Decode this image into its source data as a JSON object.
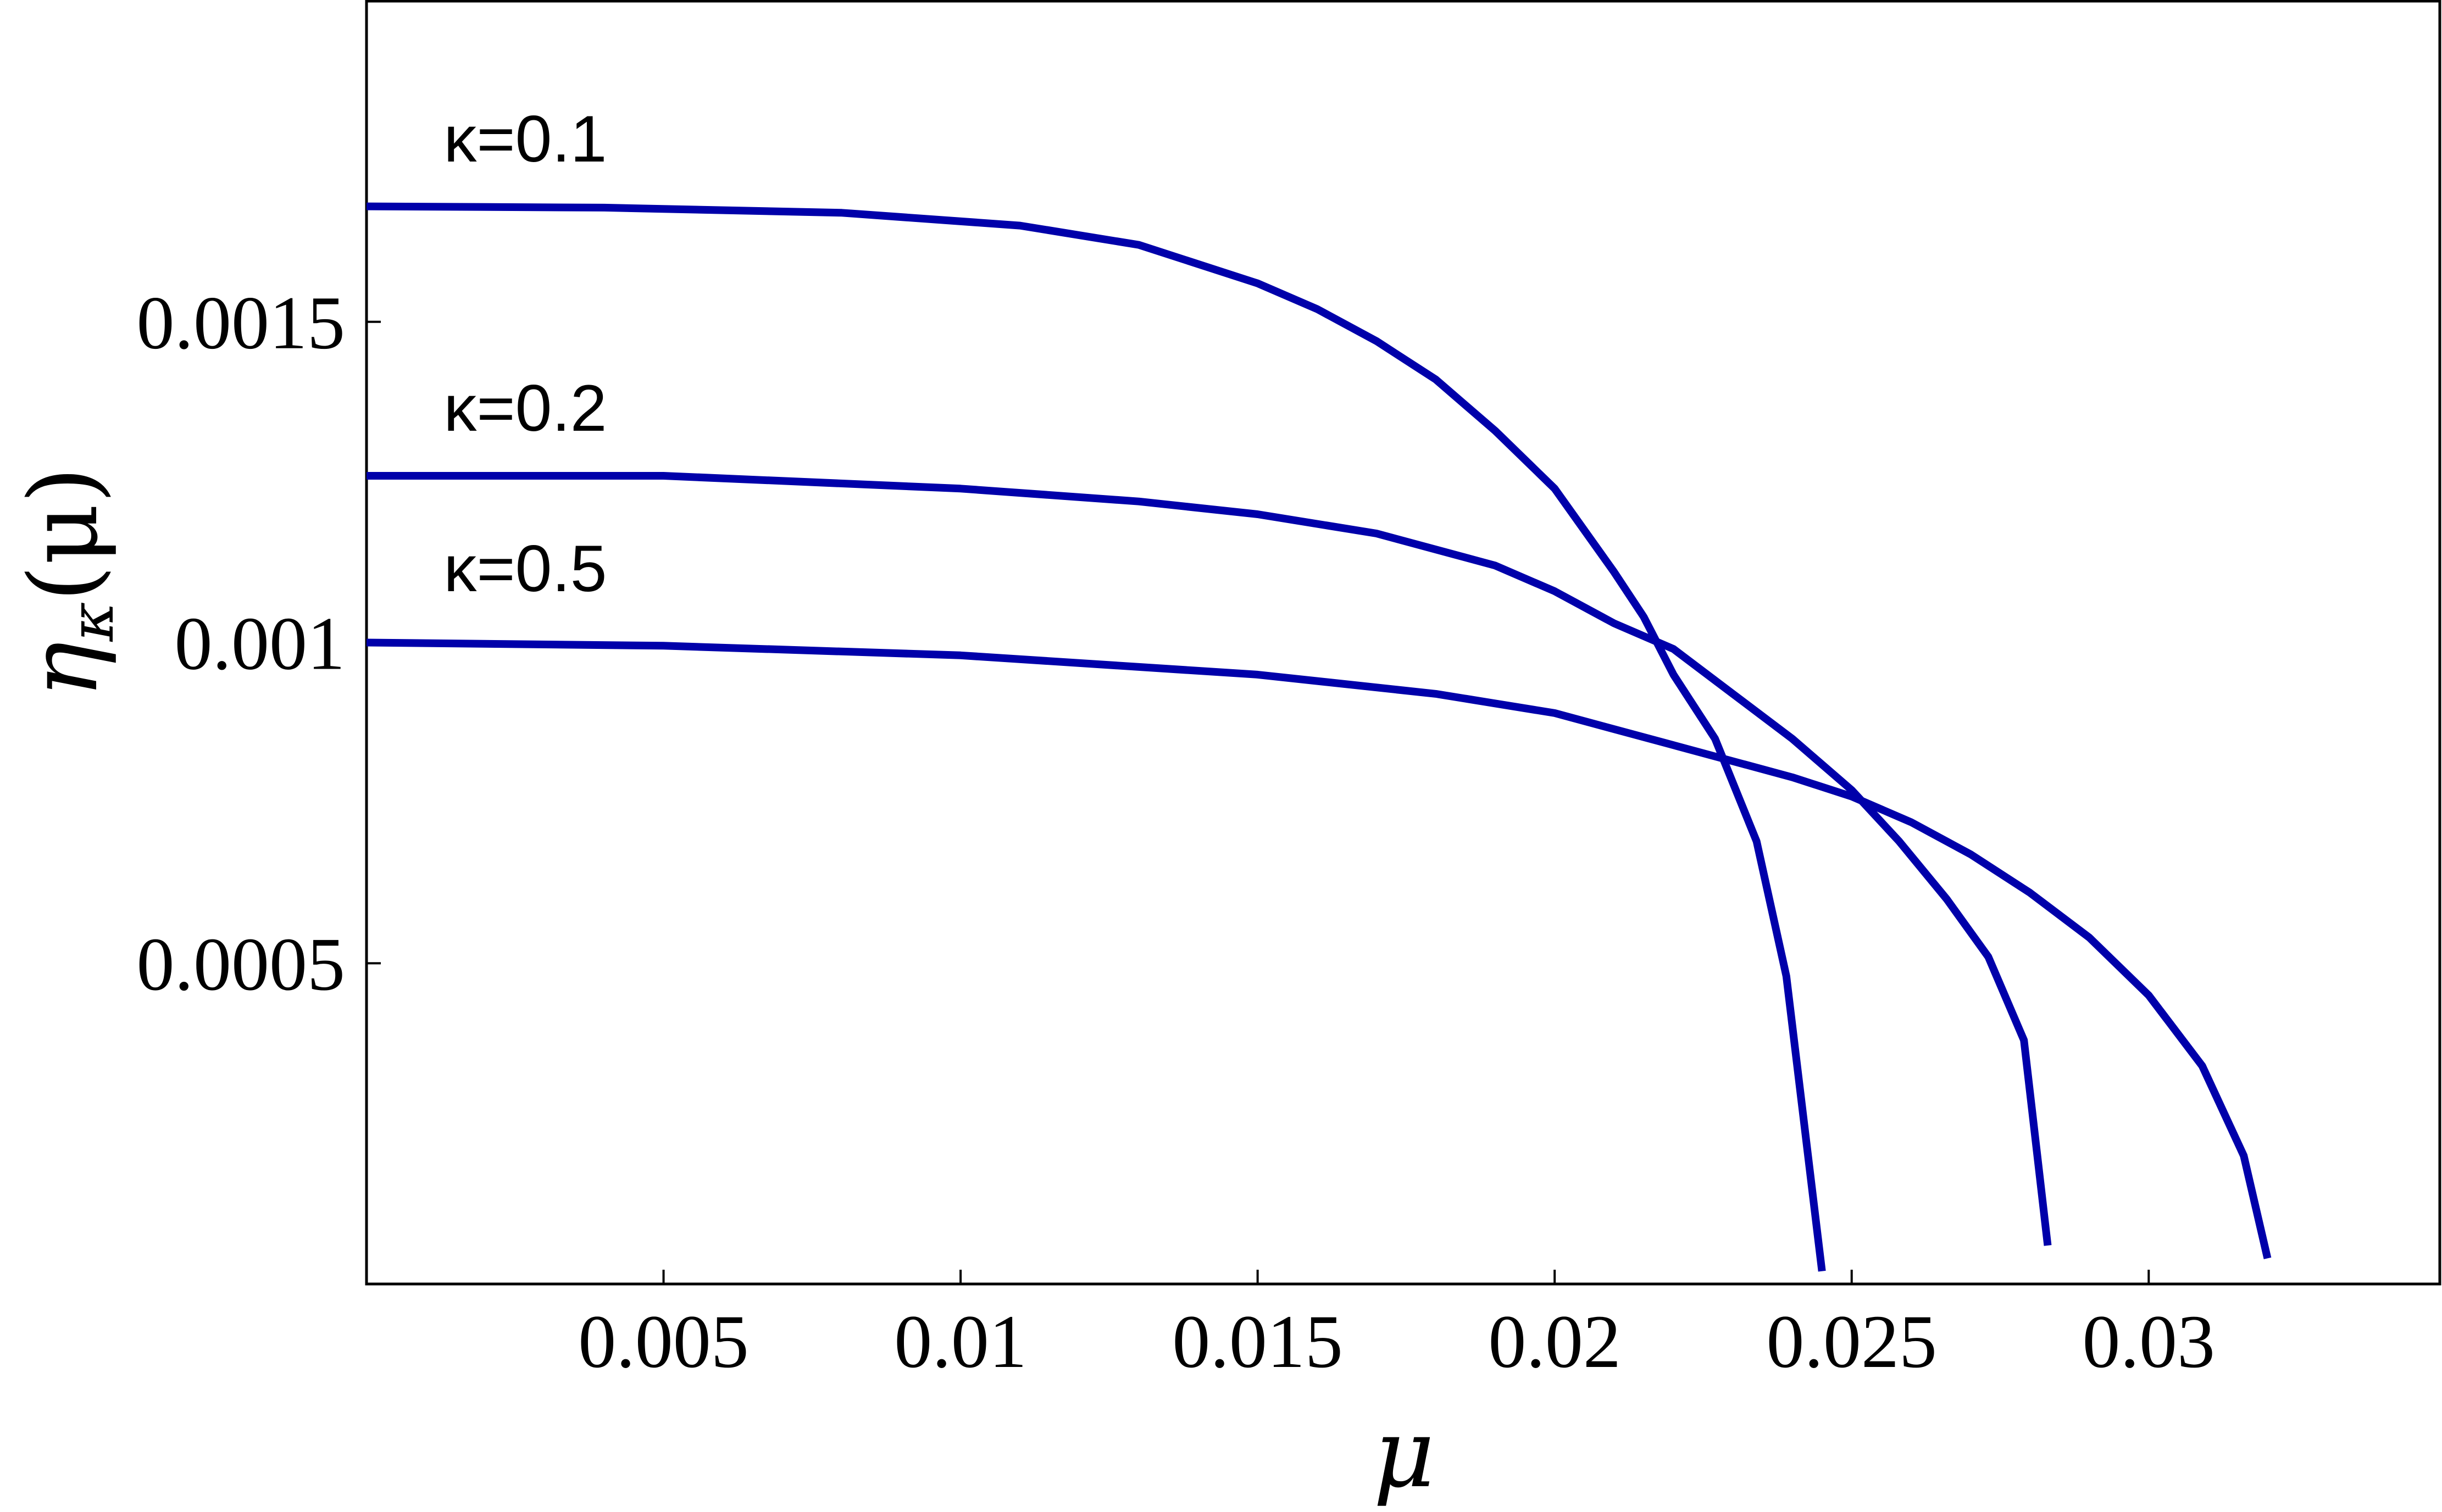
{
  "chart_data": {
    "type": "line",
    "title": "",
    "xlabel": "μ",
    "ylabel": "ηκ(μ)",
    "ylabel_main": "η",
    "ylabel_sub": "κ",
    "ylabel_arg": "(μ)",
    "xlim": [
      0,
      0.0349
    ],
    "ylim": [
      0,
      0.002
    ],
    "x_ticks": [
      0.005,
      0.01,
      0.015,
      0.02,
      0.025,
      0.03
    ],
    "x_tick_labels": [
      "0.005",
      "0.01",
      "0.015",
      "0.02",
      "0.025",
      "0.03"
    ],
    "y_ticks": [
      0.0005,
      0.001,
      0.0015
    ],
    "y_tick_labels": [
      "0.0005",
      "0.001",
      "0.0015"
    ],
    "grid": false,
    "line_color": "#0000aa",
    "series": [
      {
        "name": "κ=0.1",
        "label_x": 0.0013,
        "label_y": 0.00175,
        "x": [
          0,
          0.004,
          0.008,
          0.011,
          0.013,
          0.015,
          0.016,
          0.017,
          0.018,
          0.019,
          0.02,
          0.021,
          0.0215,
          0.022,
          0.0227,
          0.0234,
          0.0239,
          0.0245
        ],
        "y": [
          0.00168,
          0.001678,
          0.00167,
          0.00165,
          0.00162,
          0.00156,
          0.00152,
          0.00147,
          0.00141,
          0.00133,
          0.00124,
          0.00111,
          0.00104,
          0.00095,
          0.00085,
          0.00069,
          0.00048,
          2e-05
        ]
      },
      {
        "name": "κ=0.2",
        "label_x": 0.0013,
        "label_y": 0.00133,
        "x": [
          0,
          0.005,
          0.01,
          0.013,
          0.015,
          0.017,
          0.019,
          0.02,
          0.021,
          0.022,
          0.023,
          0.024,
          0.025,
          0.0258,
          0.0266,
          0.0273,
          0.0279,
          0.0283
        ],
        "y": [
          0.00126,
          0.00126,
          0.00124,
          0.00122,
          0.0012,
          0.00117,
          0.00112,
          0.00108,
          0.00103,
          0.00099,
          0.00092,
          0.00085,
          0.00077,
          0.00069,
          0.0006,
          0.00051,
          0.00038,
          6e-05
        ]
      },
      {
        "name": "κ=0.5",
        "label_x": 0.0013,
        "label_y": 0.00108,
        "x": [
          0,
          0.005,
          0.01,
          0.015,
          0.018,
          0.02,
          0.022,
          0.024,
          0.025,
          0.026,
          0.027,
          0.028,
          0.029,
          0.03,
          0.0309,
          0.0316,
          0.032
        ],
        "y": [
          0.001,
          0.000995,
          0.00098,
          0.00095,
          0.00092,
          0.00089,
          0.00084,
          0.00079,
          0.00076,
          0.00072,
          0.00067,
          0.00061,
          0.00054,
          0.00045,
          0.00034,
          0.0002,
          4e-05
        ]
      }
    ]
  }
}
